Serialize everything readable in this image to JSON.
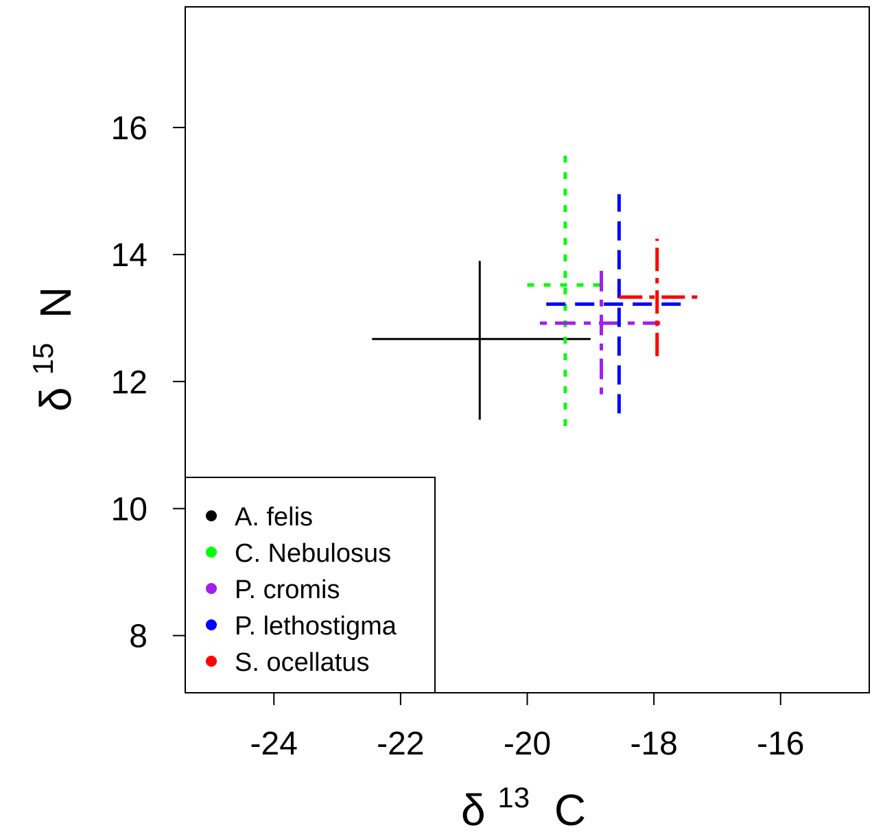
{
  "chart_data": {
    "type": "errorbar-cross",
    "title": "",
    "xlabel": {
      "symbol": "δ",
      "sup": "13",
      "main": "C"
    },
    "ylabel": {
      "symbol": "δ",
      "sup": "15",
      "main": "N"
    },
    "xlim": [
      -25.4,
      -14.6
    ],
    "ylim": [
      7.1,
      17.9
    ],
    "x_ticks": [
      -24,
      -22,
      -20,
      -18,
      -16
    ],
    "x_tick_labels": [
      "-24",
      "-22",
      "-20",
      "-18",
      "-16"
    ],
    "y_ticks": [
      8,
      10,
      12,
      14,
      16
    ],
    "y_tick_labels": [
      "8",
      "10",
      "12",
      "14",
      "16"
    ],
    "legend_position": "bottom-left",
    "series": [
      {
        "name": "A. felis",
        "color": "#000000",
        "dash": "solid",
        "x": -20.75,
        "y": 12.67,
        "x_range": [
          -22.45,
          -19.0
        ],
        "y_range": [
          11.4,
          13.9
        ]
      },
      {
        "name": "C. Nebulosus",
        "color": "#00ff00",
        "dash": "dotted",
        "x": -19.4,
        "y": 13.52,
        "x_range": [
          -20.0,
          -18.85
        ],
        "y_range": [
          11.3,
          15.65
        ]
      },
      {
        "name": "P. cromis",
        "color": "#a020f0",
        "dash": "dotdash",
        "x": -18.83,
        "y": 12.92,
        "x_range": [
          -19.8,
          -17.9
        ],
        "y_range": [
          11.8,
          13.85
        ]
      },
      {
        "name": "P. lethostigma",
        "color": "#0000ff",
        "dash": "dashed",
        "x": -18.55,
        "y": 13.22,
        "x_range": [
          -19.7,
          -17.45
        ],
        "y_range": [
          11.5,
          14.95
        ]
      },
      {
        "name": "S. ocellatus",
        "color": "#ff0000",
        "dash": "longdash-dot",
        "x": -17.95,
        "y": 13.33,
        "x_range": [
          -18.55,
          -17.25
        ],
        "y_range": [
          12.4,
          14.25
        ]
      }
    ]
  }
}
